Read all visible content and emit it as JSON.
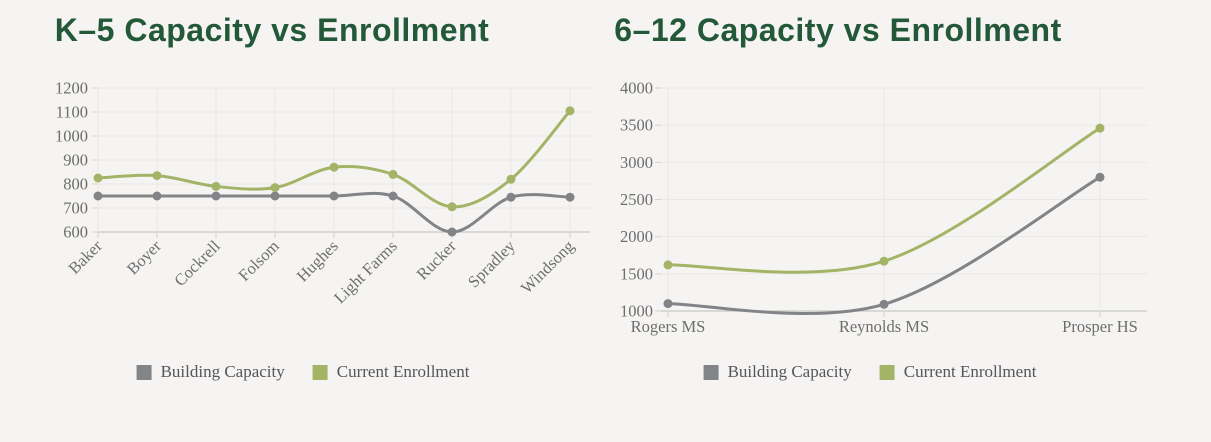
{
  "theme": {
    "background": "#f5f4f2",
    "title_color": "#235838",
    "grid_color": "#e9e8e6",
    "axis_color": "#c6c6c4",
    "tick_label_color": "#6e6e6e",
    "legend_text_color": "#55565a",
    "capacity_color": "#828487",
    "enrollment_color": "#a4b467"
  },
  "chart_data": [
    {
      "type": "line",
      "title": "K–5 Capacity vs Enrollment",
      "categories": [
        "Baker",
        "Boyer",
        "Cockrell",
        "Folsom",
        "Hughes",
        "Light Farms",
        "Rucker",
        "Spradley",
        "Windsong"
      ],
      "series": [
        {
          "name": "Building Capacity",
          "color": "#828487",
          "values": [
            750,
            750,
            750,
            750,
            750,
            750,
            600,
            745,
            745
          ]
        },
        {
          "name": "Current Enrollment",
          "color": "#a4b467",
          "values": [
            825,
            835,
            790,
            785,
            870,
            840,
            705,
            820,
            1105
          ]
        }
      ],
      "ylim": [
        600,
        1200
      ],
      "y_ticks": [
        600,
        700,
        800,
        900,
        1000,
        1100,
        1200
      ],
      "xlabel": "",
      "ylabel": "",
      "grid": true,
      "smooth": true,
      "legend_position": "bottom"
    },
    {
      "type": "line",
      "title": "6–12 Capacity vs Enrollment",
      "categories": [
        "Rogers MS",
        "Reynolds MS",
        "Prosper HS"
      ],
      "series": [
        {
          "name": "Building Capacity",
          "color": "#828487",
          "values": [
            1100,
            1090,
            2800
          ]
        },
        {
          "name": "Current Enrollment",
          "color": "#a4b467",
          "values": [
            1620,
            1670,
            3460
          ]
        }
      ],
      "ylim": [
        1000,
        4000
      ],
      "y_ticks": [
        1000,
        1500,
        2000,
        2500,
        3000,
        3500,
        4000
      ],
      "xlabel": "",
      "ylabel": "",
      "grid": true,
      "smooth": true,
      "legend_position": "bottom"
    }
  ]
}
